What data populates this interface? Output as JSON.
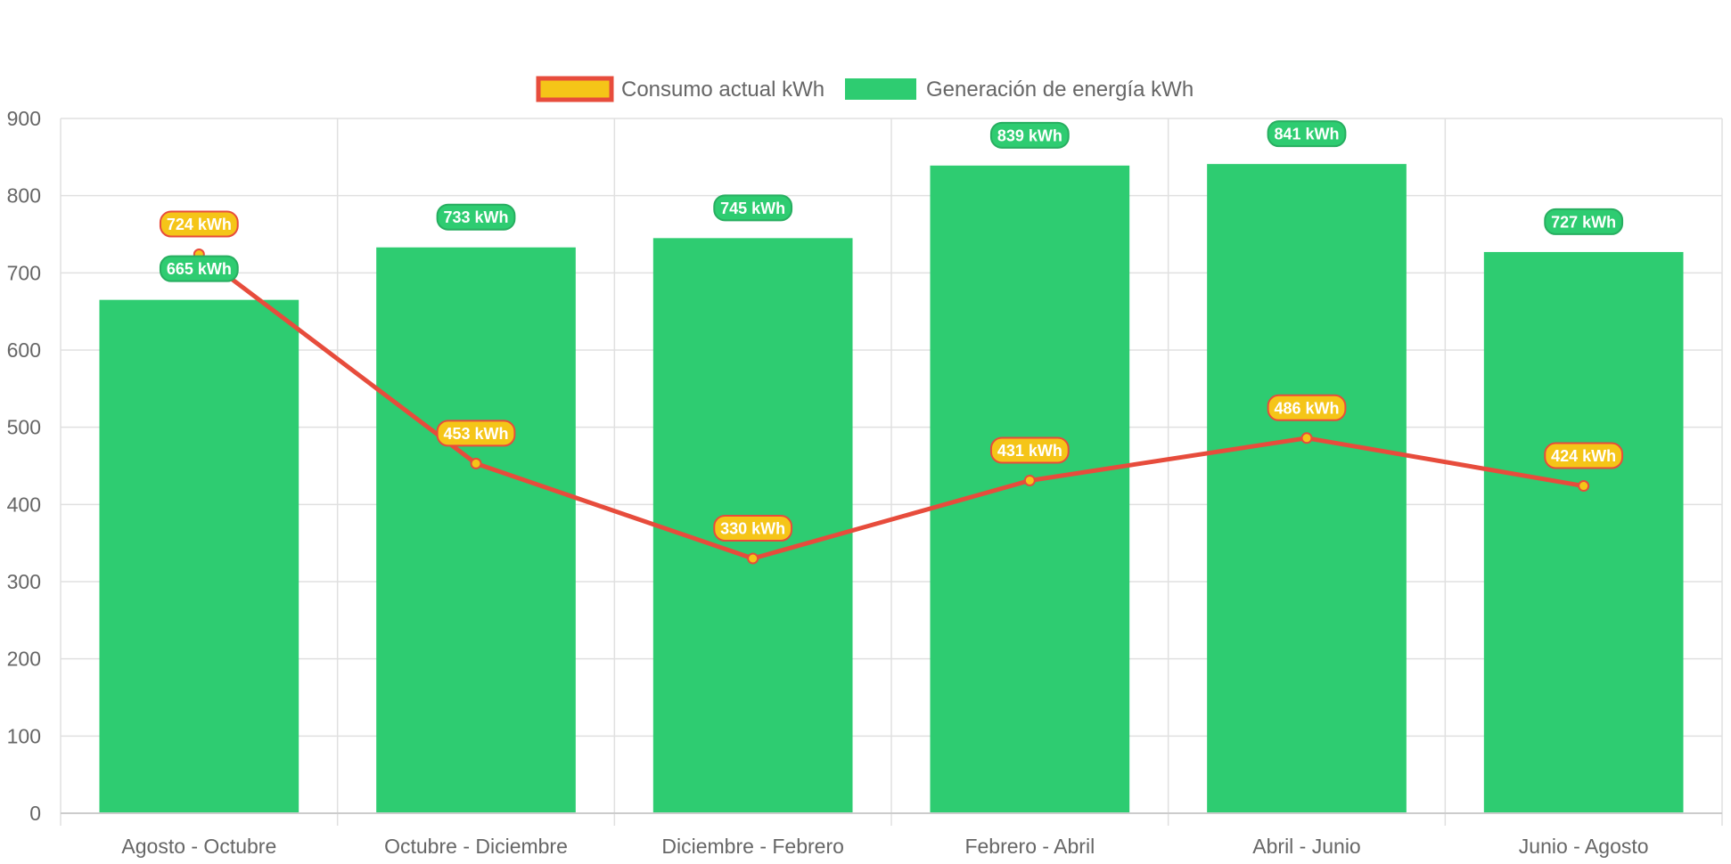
{
  "chart_data": {
    "type": "bar",
    "categories": [
      "Agosto - Octubre",
      "Octubre - Diciembre",
      "Diciembre - Febrero",
      "Febrero - Abril",
      "Abril - Junio",
      "Junio - Agosto"
    ],
    "ylim": [
      0,
      900
    ],
    "y_ticks": [
      0,
      100,
      200,
      300,
      400,
      500,
      600,
      700,
      800,
      900
    ],
    "grid": true,
    "legend_position": "top-center",
    "series": [
      {
        "name": "Consumo actual kWh",
        "type": "line",
        "values": [
          724,
          453,
          330,
          431,
          486,
          424
        ],
        "labels": [
          "724 kWh",
          "453 kWh",
          "330 kWh",
          "431 kWh",
          "486 kWh",
          "424 kWh"
        ],
        "line_color": "#e74c3c",
        "fill_color": "#f5c518"
      },
      {
        "name": "Generación de energía kWh",
        "type": "bar",
        "values": [
          665,
          733,
          745,
          839,
          841,
          727
        ],
        "labels": [
          "665 kWh",
          "733 kWh",
          "745 kWh",
          "839 kWh",
          "841 kWh",
          "727 kWh"
        ],
        "fill_color": "#2ecc71",
        "border_color": "#27ae60"
      }
    ]
  },
  "colors": {
    "grid": "#e0e0e0",
    "axis_text": "#666666"
  }
}
